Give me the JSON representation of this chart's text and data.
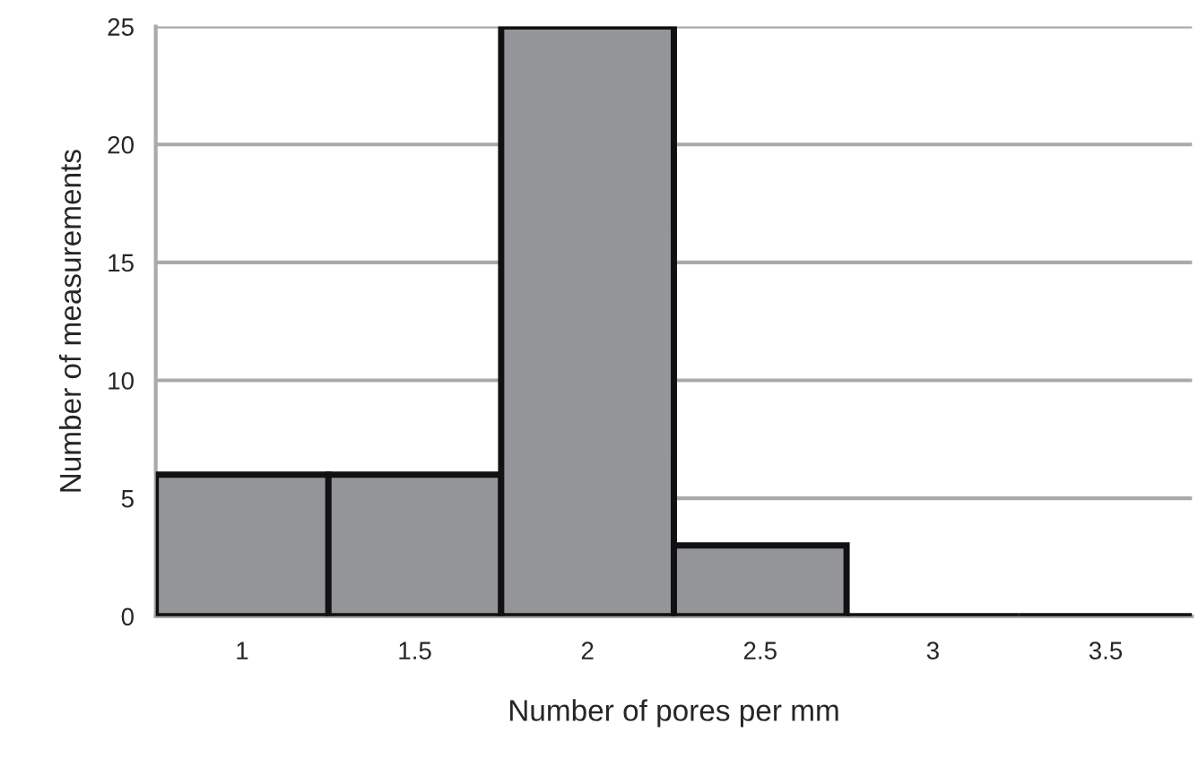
{
  "chart_data": {
    "type": "bar",
    "xlabel": "Number of pores per mm",
    "ylabel": "Number of measurements",
    "categories": [
      "1",
      "1.5",
      "2",
      "2.5",
      "3",
      "3.5"
    ],
    "values": [
      6,
      6,
      25,
      3,
      0,
      0
    ],
    "color": "#939598",
    "ylim": [
      0,
      25
    ],
    "yticks": [
      0,
      5,
      10,
      15,
      20,
      25
    ],
    "grid": "y"
  }
}
